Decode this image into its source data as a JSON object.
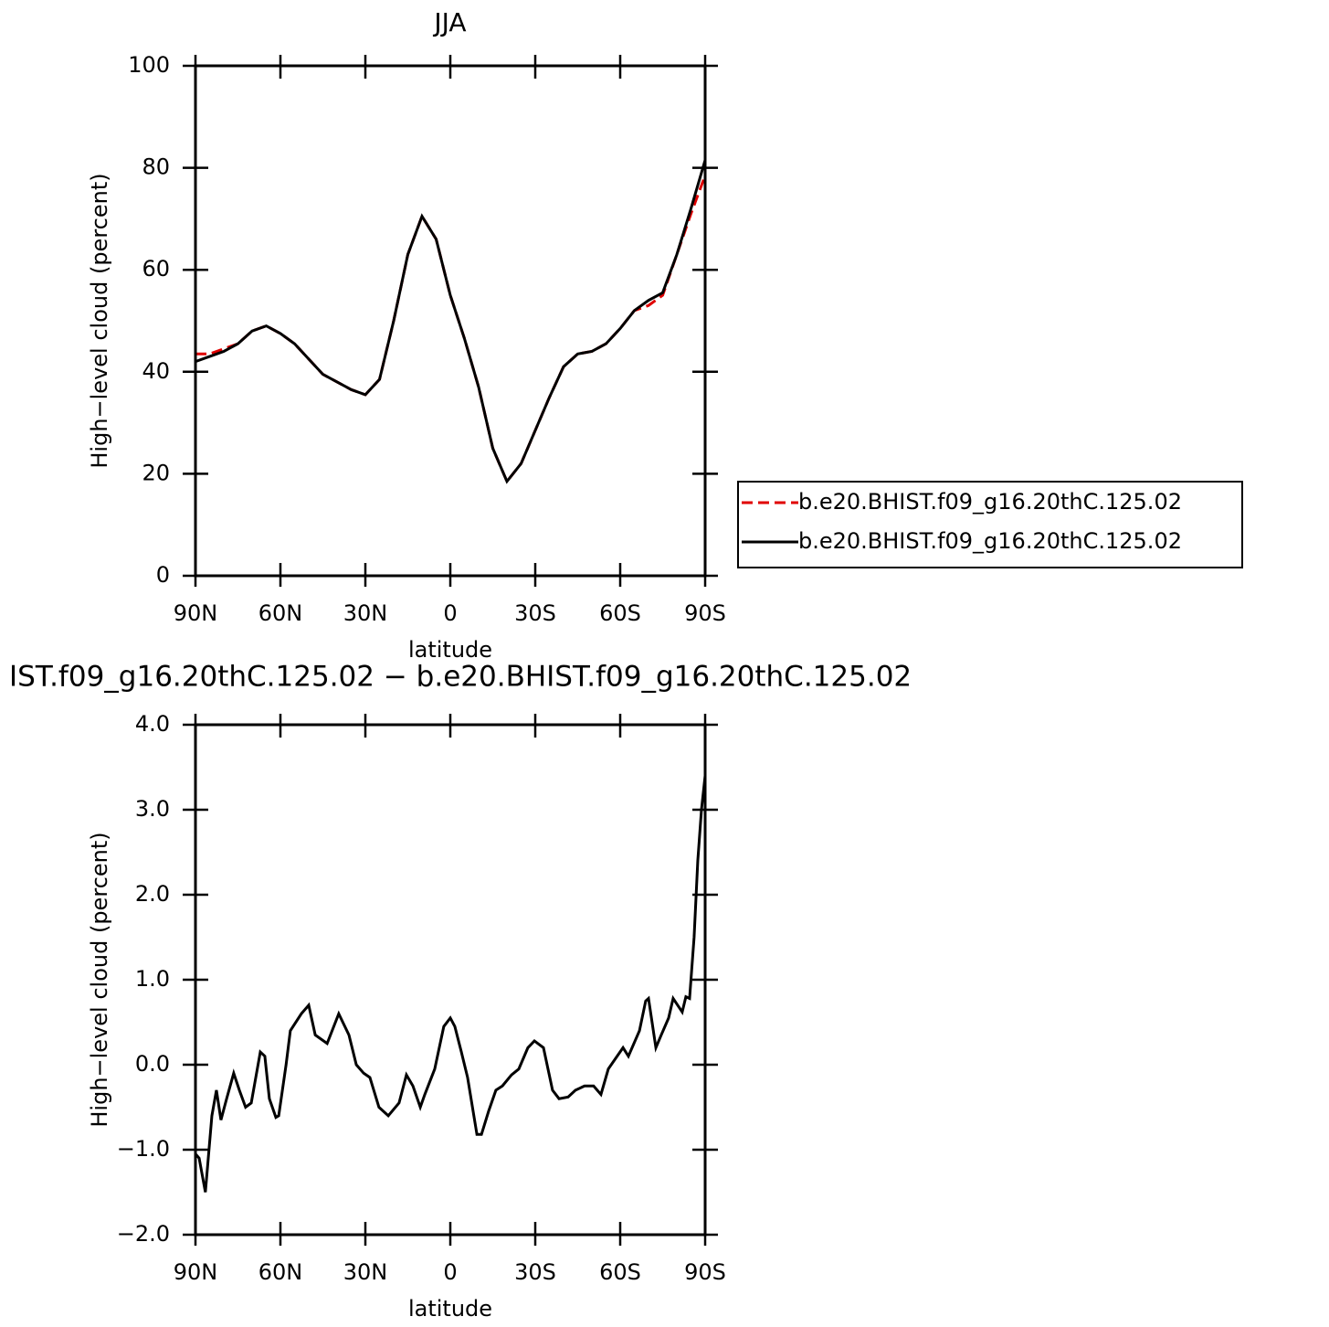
{
  "chart_data": [
    {
      "type": "line",
      "title": "JJA",
      "ylabel": "High−level cloud (percent)",
      "xlabel": "latitude",
      "xlim": [
        90,
        -90
      ],
      "xticks": [
        {
          "value": 90,
          "label": "90N"
        },
        {
          "value": 60,
          "label": "60N"
        },
        {
          "value": 30,
          "label": "30N"
        },
        0,
        {
          "value": -30,
          "label": "30S"
        },
        {
          "value": -60,
          "label": "60S"
        },
        {
          "value": -90,
          "label": "90S"
        }
      ],
      "ylim": [
        0,
        100
      ],
      "yticks": [
        0,
        20,
        40,
        60,
        80,
        100
      ],
      "x": [
        90,
        85,
        80,
        75,
        70,
        65,
        60,
        55,
        50,
        45,
        40,
        35,
        30,
        25,
        20,
        15,
        10,
        5,
        0,
        -5,
        -10,
        -15,
        -20,
        -25,
        -30,
        -35,
        -40,
        -45,
        -50,
        -55,
        -60,
        -65,
        -70,
        -75,
        -80,
        -85,
        -90
      ],
      "legend": true,
      "series": [
        {
          "name": "b.e20.BHIST.f09_g16.20thC.125.02",
          "color": "#e00000",
          "linestyle": "dashed",
          "values": [
            43.5,
            43.5,
            44.5,
            45.5,
            48,
            49,
            47.5,
            45.5,
            42.5,
            39.5,
            38,
            36.5,
            35.5,
            38.5,
            50,
            63,
            70.5,
            66,
            55,
            46.5,
            37,
            25,
            18.5,
            22,
            28.5,
            35,
            41,
            43.5,
            44,
            45.5,
            48.5,
            52,
            53,
            55,
            63,
            71,
            78.5
          ]
        },
        {
          "name": "b.e20.BHIST.f09_g16.20thC.125.02",
          "color": "#000000",
          "linestyle": "solid",
          "values": [
            42,
            43,
            44,
            45.5,
            48,
            49,
            47.5,
            45.5,
            42.5,
            39.5,
            38,
            36.5,
            35.5,
            38.5,
            50,
            63,
            70.5,
            66,
            55,
            46.5,
            37,
            25,
            18.5,
            22,
            28.5,
            35,
            41,
            43.5,
            44,
            45.5,
            48.5,
            52,
            54,
            55.5,
            63,
            72,
            81.5
          ]
        }
      ]
    },
    {
      "type": "line",
      "title": "IST.f09_g16.20thC.125.02 − b.e20.BHIST.f09_g16.20thC.125.02",
      "ylabel": "High−level cloud (percent)",
      "xlabel": "latitude",
      "xlim": [
        90,
        -90
      ],
      "xticks": [
        {
          "value": 90,
          "label": "90N"
        },
        {
          "value": 60,
          "label": "60N"
        },
        {
          "value": 30,
          "label": "30N"
        },
        0,
        {
          "value": -30,
          "label": "30S"
        },
        {
          "value": -60,
          "label": "60S"
        },
        {
          "value": -90,
          "label": "90S"
        }
      ],
      "ylim": [
        -2,
        4
      ],
      "yticks": [
        {
          "value": -2,
          "label": "−2.0"
        },
        {
          "value": -1,
          "label": "−1.0"
        },
        {
          "value": 0,
          "label": "0.0"
        },
        {
          "value": 1,
          "label": "1.0"
        },
        {
          "value": 2,
          "label": "2.0"
        },
        {
          "value": 3,
          "label": "3.0"
        },
        {
          "value": 4,
          "label": "4.0"
        }
      ],
      "x": [
        90,
        88.7,
        86.5,
        84.2,
        82.6,
        81,
        79,
        76.5,
        74.5,
        72.3,
        70.3,
        67.1,
        65.5,
        63.9,
        61.6,
        60.6,
        58,
        56.5,
        52.6,
        50,
        47.7,
        43.5,
        39.4,
        35.8,
        33.2,
        30.6,
        28.4,
        25.2,
        21.9,
        18.1,
        15.5,
        13.2,
        10.6,
        9,
        5.5,
        2.3,
        0,
        -1.6,
        -3.9,
        -6.1,
        -9.4,
        -11,
        -13.5,
        -16.1,
        -18.4,
        -21.6,
        -24.2,
        -27.4,
        -29.7,
        -32.9,
        -36.1,
        -38.4,
        -41.6,
        -44.2,
        -47.4,
        -50.6,
        -53.2,
        -55.8,
        -61,
        -62.9,
        -66.8,
        -69,
        -70,
        -72.6,
        -74.5,
        -77.1,
        -78.7,
        -80.3,
        -81.9,
        -83.2,
        -84.5,
        -86.1,
        -87.4,
        -88.7,
        -90
      ],
      "legend": false,
      "series": [
        {
          "color": "#000000",
          "linestyle": "solid",
          "values": [
            -1.05,
            -1.1,
            -1.5,
            -0.6,
            -0.3,
            -0.65,
            -0.4,
            -0.1,
            -0.3,
            -0.5,
            -0.45,
            0.15,
            0.1,
            -0.4,
            -0.62,
            -0.6,
            0.0,
            0.4,
            0.6,
            0.7,
            0.35,
            0.25,
            0.6,
            0.35,
            0.0,
            -0.1,
            -0.15,
            -0.5,
            -0.6,
            -0.45,
            -0.12,
            -0.25,
            -0.5,
            -0.35,
            -0.05,
            0.45,
            0.55,
            0.45,
            0.15,
            -0.15,
            -0.82,
            -0.82,
            -0.55,
            -0.3,
            -0.25,
            -0.12,
            -0.05,
            0.2,
            0.28,
            0.2,
            -0.3,
            -0.4,
            -0.38,
            -0.3,
            -0.25,
            -0.25,
            -0.35,
            -0.05,
            0.2,
            0.1,
            0.4,
            0.75,
            0.78,
            0.2,
            0.35,
            0.55,
            0.78,
            0.7,
            0.62,
            0.8,
            0.78,
            1.5,
            2.4,
            3.0,
            3.4
          ]
        }
      ]
    }
  ]
}
